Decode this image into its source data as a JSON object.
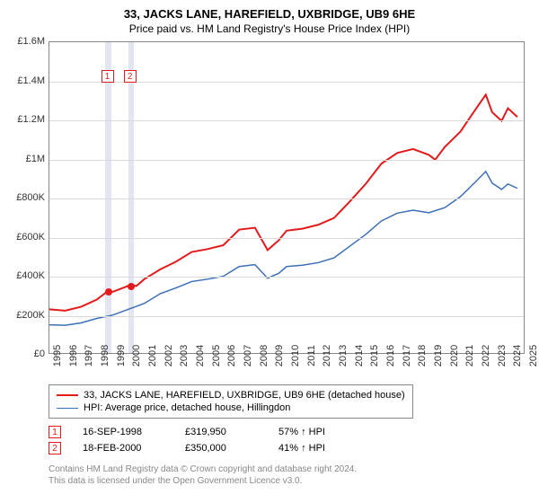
{
  "title": "33, JACKS LANE, HAREFIELD, UXBRIDGE, UB9 6HE",
  "subtitle": "Price paid vs. HM Land Registry's House Price Index (HPI)",
  "chart": {
    "type": "line",
    "background_color": "#ffffff",
    "grid_color": "#d9d9d9",
    "border_color": "#888888",
    "label_fontsize": 11,
    "xlim": [
      1995,
      2025
    ],
    "ylim": [
      0,
      1600000
    ],
    "yticks": [
      {
        "v": 0,
        "label": "£0"
      },
      {
        "v": 200000,
        "label": "£200K"
      },
      {
        "v": 400000,
        "label": "£400K"
      },
      {
        "v": 600000,
        "label": "£600K"
      },
      {
        "v": 800000,
        "label": "£800K"
      },
      {
        "v": 1000000,
        "label": "£1M"
      },
      {
        "v": 1200000,
        "label": "£1.2M"
      },
      {
        "v": 1400000,
        "label": "£1.4M"
      },
      {
        "v": 1600000,
        "label": "£1.6M"
      }
    ],
    "xticks": [
      1995,
      1996,
      1997,
      1998,
      1999,
      2000,
      2001,
      2002,
      2003,
      2004,
      2005,
      2006,
      2007,
      2008,
      2009,
      2010,
      2011,
      2012,
      2013,
      2014,
      2015,
      2016,
      2017,
      2018,
      2019,
      2020,
      2021,
      2022,
      2023,
      2024,
      2025
    ],
    "vbars": [
      {
        "x": 1998.71,
        "width": 0.35,
        "color": "#e2e6f2"
      },
      {
        "x": 2000.13,
        "width": 0.35,
        "color": "#e2e6f2"
      }
    ],
    "series": [
      {
        "name": "33, JACKS LANE, HAREFIELD, UXBRIDGE, UB9 6HE (detached house)",
        "color": "#e31a1c",
        "line_width": 2,
        "points": [
          [
            1995,
            225000
          ],
          [
            1996,
            218000
          ],
          [
            1997,
            238000
          ],
          [
            1998,
            275000
          ],
          [
            1998.71,
            319950
          ],
          [
            1999,
            315000
          ],
          [
            2000.13,
            350000
          ],
          [
            2000.5,
            345000
          ],
          [
            2001,
            380000
          ],
          [
            2002,
            430000
          ],
          [
            2003,
            470000
          ],
          [
            2004,
            520000
          ],
          [
            2005,
            535000
          ],
          [
            2006,
            555000
          ],
          [
            2007,
            635000
          ],
          [
            2008,
            645000
          ],
          [
            2008.8,
            530000
          ],
          [
            2009.5,
            580000
          ],
          [
            2010,
            630000
          ],
          [
            2011,
            640000
          ],
          [
            2012,
            660000
          ],
          [
            2013,
            695000
          ],
          [
            2014,
            780000
          ],
          [
            2015,
            870000
          ],
          [
            2016,
            975000
          ],
          [
            2017,
            1030000
          ],
          [
            2018,
            1050000
          ],
          [
            2019,
            1020000
          ],
          [
            2019.4,
            995000
          ],
          [
            2020,
            1060000
          ],
          [
            2021,
            1140000
          ],
          [
            2022,
            1260000
          ],
          [
            2022.6,
            1330000
          ],
          [
            2023,
            1240000
          ],
          [
            2023.6,
            1195000
          ],
          [
            2024,
            1260000
          ],
          [
            2024.6,
            1215000
          ]
        ]
      },
      {
        "name": "HPI: Average price, detached house, Hillingdon",
        "color": "#3b6fb6",
        "line_width": 1.5,
        "points": [
          [
            1995,
            145000
          ],
          [
            1996,
            143000
          ],
          [
            1997,
            155000
          ],
          [
            1998,
            178000
          ],
          [
            1999,
            195000
          ],
          [
            2000,
            225000
          ],
          [
            2001,
            255000
          ],
          [
            2002,
            305000
          ],
          [
            2003,
            335000
          ],
          [
            2004,
            368000
          ],
          [
            2005,
            380000
          ],
          [
            2006,
            395000
          ],
          [
            2007,
            445000
          ],
          [
            2008,
            455000
          ],
          [
            2008.8,
            385000
          ],
          [
            2009.5,
            410000
          ],
          [
            2010,
            445000
          ],
          [
            2011,
            452000
          ],
          [
            2012,
            465000
          ],
          [
            2013,
            490000
          ],
          [
            2014,
            550000
          ],
          [
            2015,
            610000
          ],
          [
            2016,
            680000
          ],
          [
            2017,
            720000
          ],
          [
            2018,
            735000
          ],
          [
            2019,
            722000
          ],
          [
            2020,
            748000
          ],
          [
            2021,
            805000
          ],
          [
            2022,
            885000
          ],
          [
            2022.6,
            935000
          ],
          [
            2023,
            875000
          ],
          [
            2023.6,
            842000
          ],
          [
            2024,
            870000
          ],
          [
            2024.6,
            848000
          ]
        ]
      }
    ],
    "markers": [
      {
        "label": "1",
        "x": 1998.71,
        "y": 319950,
        "color": "#e31a1c",
        "box_top": 78
      },
      {
        "label": "2",
        "x": 2000.13,
        "y": 350000,
        "color": "#e31a1c",
        "box_top": 78
      }
    ]
  },
  "transactions": [
    {
      "label": "1",
      "date": "16-SEP-1998",
      "price": "£319,950",
      "hpi": "57% ↑ HPI",
      "color": "#e31a1c"
    },
    {
      "label": "2",
      "date": "18-FEB-2000",
      "price": "£350,000",
      "hpi": "41% ↑ HPI",
      "color": "#e31a1c"
    }
  ],
  "footnote_line1": "Contains HM Land Registry data © Crown copyright and database right 2024.",
  "footnote_line2": "This data is licensed under the Open Government Licence v3.0."
}
